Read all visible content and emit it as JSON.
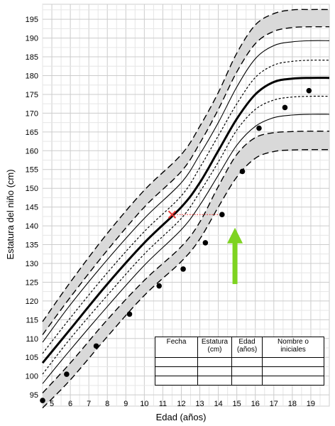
{
  "chart_data": {
    "type": "line",
    "title": "",
    "xlabel": "Edad (años)",
    "ylabel": "Estatura del niño (cm)",
    "xlim": [
      4.5,
      20
    ],
    "ylim": [
      92,
      199
    ],
    "x_ticks": [
      5,
      6,
      7,
      8,
      9,
      10,
      11,
      12,
      13,
      14,
      15,
      16,
      17,
      18,
      19
    ],
    "y_ticks": [
      95,
      100,
      105,
      110,
      115,
      120,
      125,
      130,
      135,
      140,
      145,
      150,
      155,
      160,
      165,
      170,
      175,
      180,
      185,
      190,
      195
    ],
    "grid": true,
    "percentile_curves": [
      {
        "style": "dashed",
        "x": [
          4.5,
          6,
          8,
          10,
          12,
          13,
          14,
          15,
          16,
          17,
          18,
          19,
          20
        ],
        "values": [
          95.5,
          103.5,
          115,
          125.5,
          134.5,
          141,
          150.5,
          159,
          163.5,
          164.8,
          165.1,
          165.2,
          165.2
        ]
      },
      {
        "style": "dashed",
        "x": [
          4.5,
          6,
          8,
          10,
          12,
          13,
          14,
          15,
          16,
          17,
          18,
          19,
          20
        ],
        "values": [
          91.5,
          99,
          110.5,
          121.5,
          130.5,
          136.5,
          145,
          153,
          158,
          159.8,
          160.2,
          160.3,
          160.3
        ]
      },
      {
        "style": "solid",
        "x": [
          4.5,
          6,
          8,
          10,
          12,
          13,
          14,
          15,
          16,
          17,
          18,
          19,
          20
        ],
        "values": [
          98,
          107,
          118.5,
          129.5,
          139,
          145.5,
          153.5,
          161.5,
          166.5,
          168.8,
          169.5,
          169.7,
          169.7
        ]
      },
      {
        "style": "dotted",
        "x": [
          4.5,
          6,
          8,
          10,
          12,
          13,
          14,
          15,
          16,
          17,
          18,
          19,
          20
        ],
        "values": [
          100.5,
          110,
          121.5,
          132.5,
          142,
          149,
          157,
          165.5,
          171,
          173.5,
          174.3,
          174.5,
          174.5
        ]
      },
      {
        "style": "bold",
        "x": [
          4.5,
          6,
          8,
          10,
          12,
          13,
          14,
          15,
          16,
          17,
          18,
          19,
          20
        ],
        "values": [
          103.5,
          112.5,
          124.5,
          135.5,
          145,
          151.5,
          160,
          168.5,
          175,
          178.3,
          179.2,
          179.4,
          179.4
        ]
      },
      {
        "style": "dotted",
        "x": [
          4.5,
          6,
          8,
          10,
          12,
          13,
          14,
          15,
          16,
          17,
          18,
          19,
          20
        ],
        "values": [
          106,
          115.5,
          127.5,
          138.5,
          148,
          155.5,
          164,
          172.5,
          179.5,
          182.8,
          183.8,
          184.1,
          184.1
        ]
      },
      {
        "style": "solid",
        "x": [
          4.5,
          6,
          8,
          10,
          12,
          13,
          14,
          15,
          16,
          17,
          18,
          19,
          20
        ],
        "values": [
          109,
          119,
          131,
          142,
          151.5,
          159,
          167.5,
          177,
          184.5,
          188,
          189,
          189.3,
          189.3
        ]
      },
      {
        "style": "dashed",
        "x": [
          4.5,
          6,
          8,
          10,
          12,
          13,
          14,
          15,
          16,
          17,
          18,
          19,
          20
        ],
        "values": [
          111,
          121,
          133.5,
          145,
          154.5,
          162,
          171,
          181,
          188.5,
          191.8,
          192.8,
          193,
          193
        ]
      },
      {
        "style": "dashed",
        "x": [
          4.5,
          6,
          8,
          10,
          12,
          13,
          14,
          15,
          16,
          17,
          18,
          19,
          20
        ],
        "values": [
          114.5,
          125,
          138,
          149.5,
          159,
          166.5,
          175.5,
          186,
          193.5,
          196.5,
          197.5,
          197.6,
          197.6
        ]
      }
    ],
    "shaded_bands": [
      [
        0,
        1
      ],
      [
        7,
        8
      ]
    ],
    "points": {
      "x": [
        4.5,
        5.8,
        7.4,
        9.2,
        10.8,
        12.1,
        13.3,
        14.2,
        15.3,
        16.2,
        17.6,
        18.9
      ],
      "values": [
        93.5,
        100.5,
        108,
        116.5,
        124,
        128.5,
        135.5,
        143,
        154.5,
        166,
        171.5,
        176
      ]
    },
    "marker_x": {
      "x": 11.5,
      "value": 143,
      "color": "#e53935"
    },
    "arrow": {
      "x": 14.9,
      "from": 124.5,
      "to": 139.5,
      "color": "#7ed321"
    }
  },
  "table": {
    "headers": [
      "Fecha",
      "Estatura (cm)",
      "Edad (años)",
      "Nombre o iniciales"
    ],
    "rows": [
      [
        "",
        "",
        "",
        ""
      ],
      [
        "",
        "",
        "",
        ""
      ],
      [
        "",
        "",
        "",
        ""
      ]
    ]
  }
}
